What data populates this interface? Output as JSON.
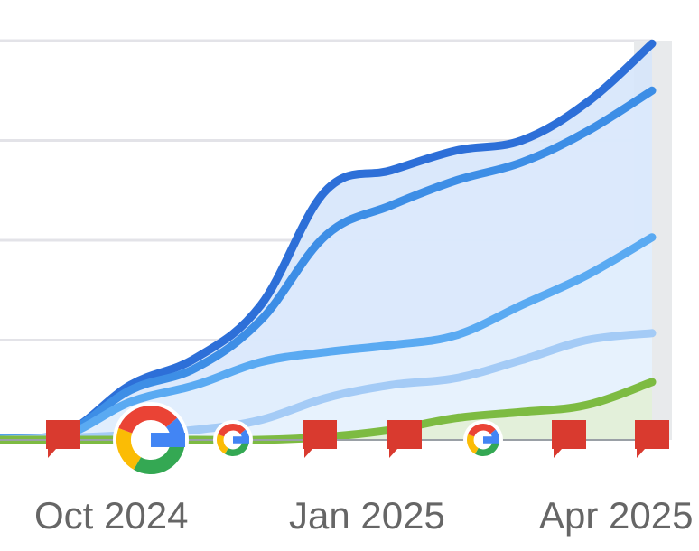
{
  "chart_data": {
    "type": "area",
    "x_ticks": [
      "Oct 2024",
      "Jan 2025",
      "Apr 2025"
    ],
    "grid": true,
    "y_gridlines": [
      1,
      2,
      3,
      4
    ],
    "ylim": [
      0,
      4
    ],
    "series": [
      {
        "color": "#2d6fd8",
        "values": [
          0.02,
          0.07,
          0.55,
          0.82,
          1.35,
          2.5,
          2.7,
          2.9,
          3.0,
          3.38,
          3.97
        ]
      },
      {
        "color": "#3d8ee6",
        "values": [
          0.02,
          0.07,
          0.5,
          0.72,
          1.2,
          2.05,
          2.35,
          2.6,
          2.78,
          3.09,
          3.5
        ]
      },
      {
        "color": "#5aaaf2",
        "values": [
          0.01,
          0.05,
          0.38,
          0.55,
          0.78,
          0.88,
          0.95,
          1.05,
          1.35,
          1.65,
          2.03
        ]
      },
      {
        "color": "#a4cbf6",
        "values": [
          0.0,
          0.02,
          0.05,
          0.1,
          0.2,
          0.42,
          0.55,
          0.62,
          0.8,
          1.0,
          1.07
        ]
      },
      {
        "color": "#7dbb42",
        "values": [
          0.0,
          0.0,
          0.0,
          0.0,
          0.0,
          0.03,
          0.1,
          0.22,
          0.28,
          0.35,
          0.58
        ]
      }
    ],
    "event_markers": [
      {
        "type": "annotation-flag",
        "icon": "red-flag-icon"
      },
      {
        "type": "google-update",
        "icon": "google-logo-icon",
        "size": "large"
      },
      {
        "type": "google-update",
        "icon": "google-logo-icon",
        "size": "small"
      },
      {
        "type": "annotation-flag",
        "icon": "red-flag-icon"
      },
      {
        "type": "annotation-flag",
        "icon": "red-flag-icon"
      },
      {
        "type": "google-update",
        "icon": "google-logo-icon",
        "size": "small"
      },
      {
        "type": "annotation-flag",
        "icon": "red-flag-icon"
      },
      {
        "type": "annotation-flag",
        "icon": "red-flag-icon"
      }
    ],
    "colors": {
      "grid": "#e3e3e8",
      "baseline": "#9aa0a6",
      "flag": "#d93a2f",
      "green_line": "#7dbb42",
      "right_band": "#e8eaec"
    }
  }
}
